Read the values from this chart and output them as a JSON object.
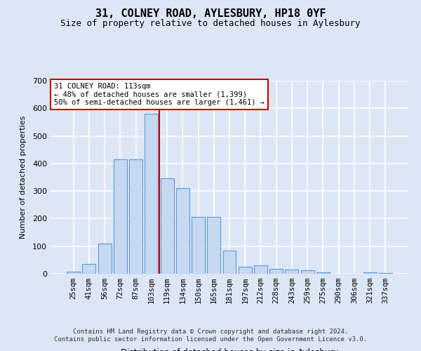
{
  "title": "31, COLNEY ROAD, AYLESBURY, HP18 0YF",
  "subtitle": "Size of property relative to detached houses in Aylesbury",
  "xlabel": "Distribution of detached houses by size in Aylesbury",
  "ylabel": "Number of detached properties",
  "categories": [
    "25sqm",
    "41sqm",
    "56sqm",
    "72sqm",
    "87sqm",
    "103sqm",
    "119sqm",
    "134sqm",
    "150sqm",
    "165sqm",
    "181sqm",
    "197sqm",
    "212sqm",
    "228sqm",
    "243sqm",
    "259sqm",
    "275sqm",
    "290sqm",
    "306sqm",
    "321sqm",
    "337sqm"
  ],
  "values": [
    8,
    35,
    110,
    415,
    415,
    580,
    345,
    310,
    205,
    205,
    85,
    25,
    30,
    18,
    15,
    12,
    5,
    0,
    0,
    5,
    2
  ],
  "bar_color": "#c6d9f1",
  "bar_edge_color": "#5b9bd5",
  "vline_color": "#cc0000",
  "vline_pos": 5.5,
  "annotation_text": "31 COLNEY ROAD: 113sqm\n← 48% of detached houses are smaller (1,399)\n50% of semi-detached houses are larger (1,461) →",
  "annotation_box_facecolor": "white",
  "annotation_box_edgecolor": "#cc0000",
  "ylim": [
    0,
    700
  ],
  "yticks": [
    0,
    100,
    200,
    300,
    400,
    500,
    600,
    700
  ],
  "bg_color": "#dce6f5",
  "plot_bg_color": "#dce6f5",
  "grid_color": "white",
  "footer_line1": "Contains HM Land Registry data © Crown copyright and database right 2024.",
  "footer_line2": "Contains public sector information licensed under the Open Government Licence v3.0."
}
